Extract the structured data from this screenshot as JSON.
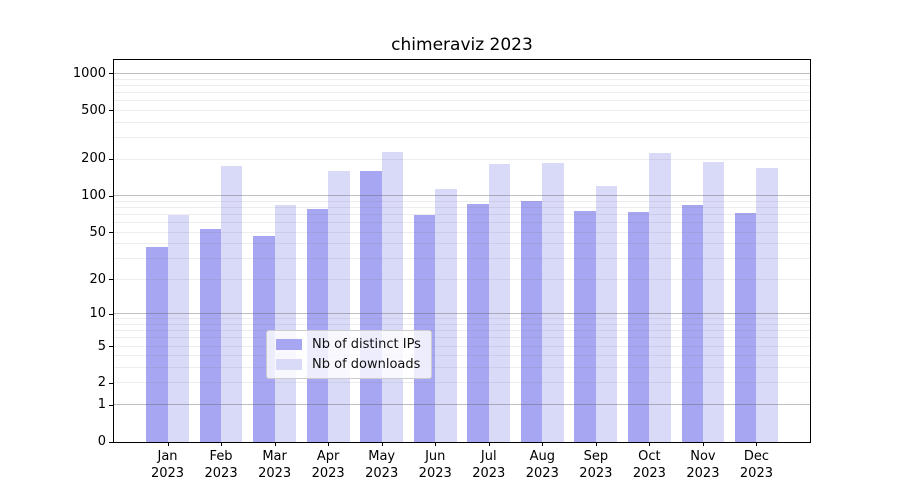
{
  "title": "chimeraviz 2023",
  "chart_data": {
    "type": "bar",
    "title": "chimeraviz 2023",
    "xlabel": "",
    "ylabel": "",
    "scale": "log1p",
    "grid": true,
    "legend_position": "lower center",
    "categories": [
      "Jan",
      "Feb",
      "Mar",
      "Apr",
      "May",
      "Jun",
      "Jul",
      "Aug",
      "Sep",
      "Oct",
      "Nov",
      "Dec"
    ],
    "year_label": "2023",
    "series": [
      {
        "name": "Nb of distinct IPs",
        "color": "#a6a6f2",
        "values": [
          38,
          54,
          47,
          78,
          162,
          70,
          87,
          92,
          75,
          74,
          84,
          72
        ]
      },
      {
        "name": "Nb of downloads",
        "color": "#d9d9f8",
        "values": [
          70,
          178,
          84,
          160,
          232,
          115,
          184,
          186,
          122,
          228,
          191,
          170
        ]
      }
    ],
    "yticks": [
      0,
      1,
      2,
      5,
      10,
      20,
      50,
      100,
      200,
      500,
      1000
    ],
    "grid_major": [
      1,
      10,
      100,
      1000
    ],
    "grid_minor": [
      2,
      3,
      4,
      5,
      6,
      7,
      8,
      9,
      20,
      30,
      40,
      50,
      60,
      70,
      80,
      90,
      200,
      300,
      400,
      500,
      600,
      700,
      800,
      900
    ],
    "ylim_top": 1300,
    "axis_color": "#000000",
    "grid_major_color": "#bcbcbc",
    "grid_minor_color": "#e7e7e7"
  }
}
